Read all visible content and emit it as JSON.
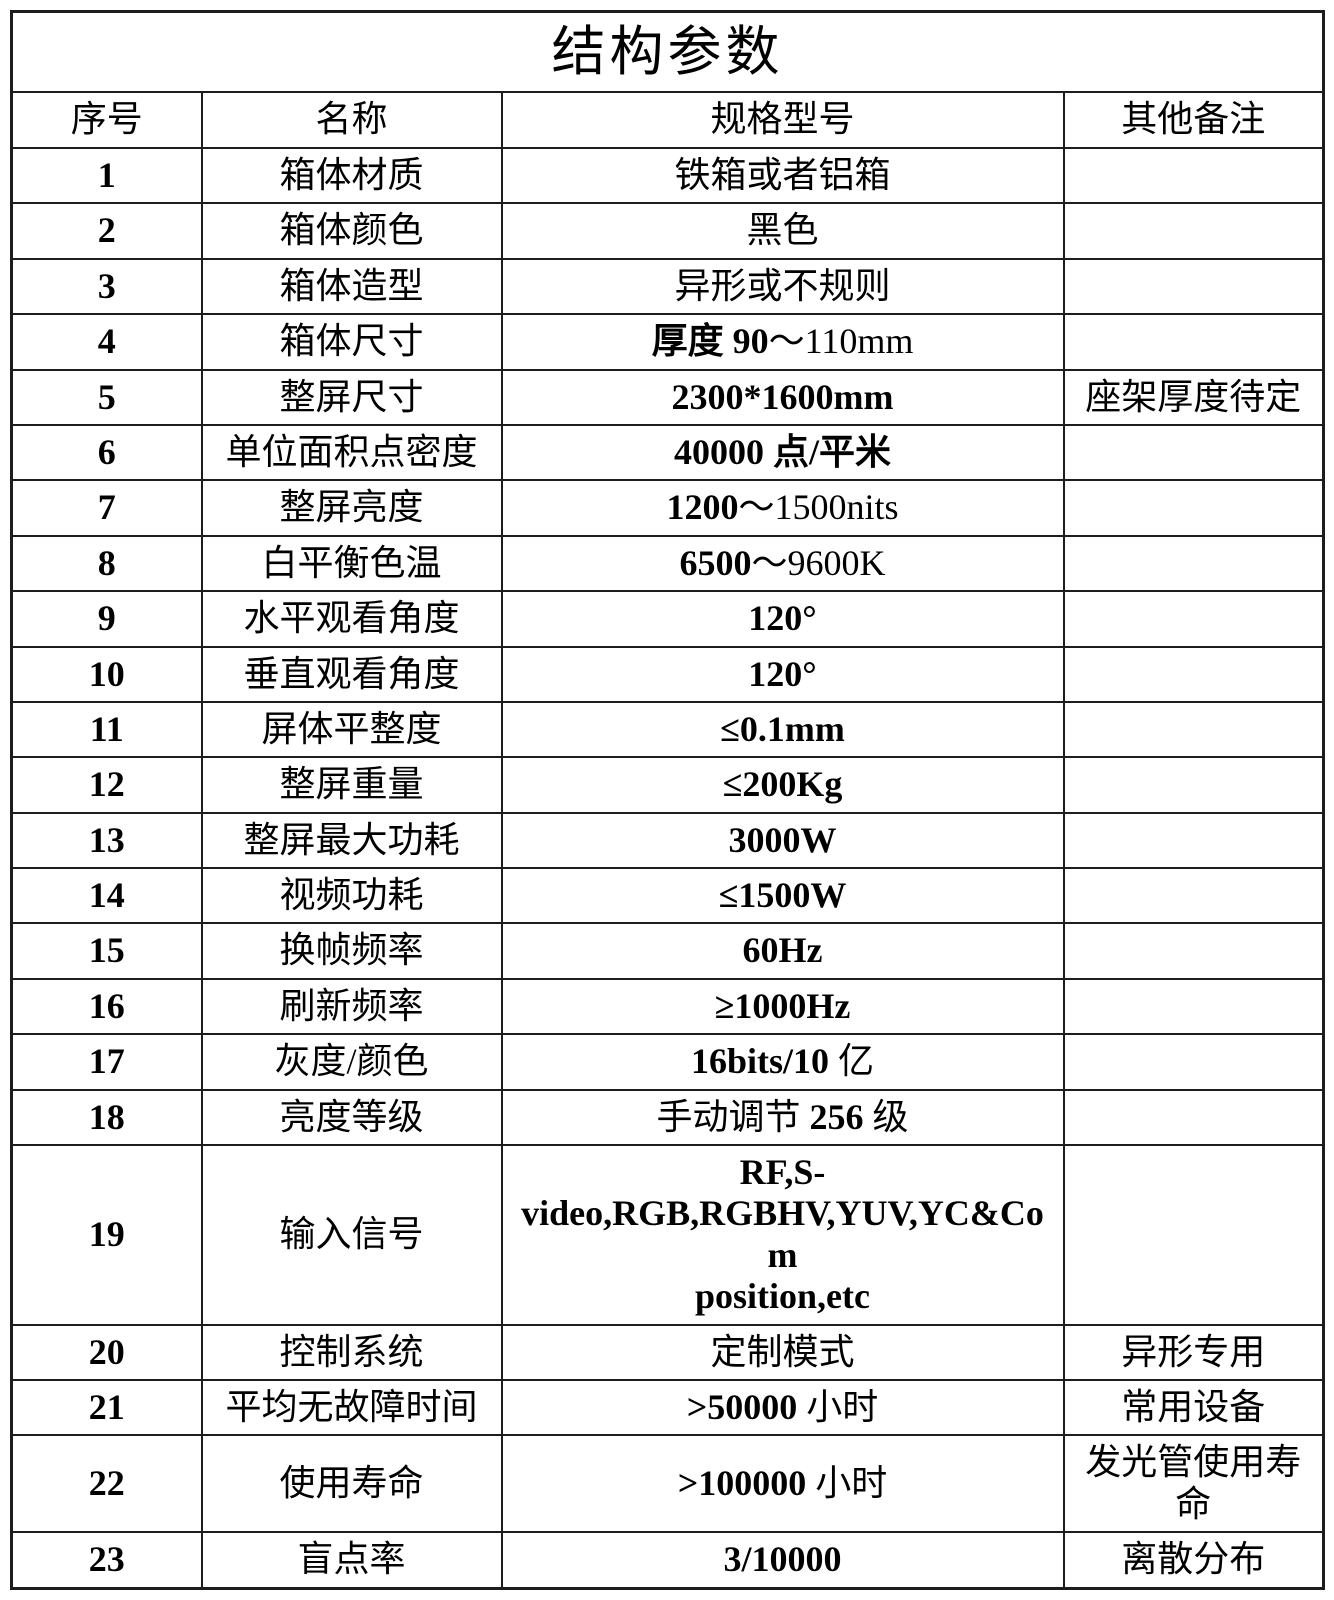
{
  "colors": {
    "background": "#ffffff",
    "text": "#000000",
    "border": "#1d1d1d"
  },
  "table": {
    "title": "结构参数",
    "columns": [
      "序号",
      "名称",
      "规格型号",
      "其他备注"
    ],
    "rows": [
      {
        "no": "1",
        "name": "箱体材质",
        "spec": [
          {
            "t": "铁箱或者铝箱",
            "b": false
          }
        ],
        "remark": ""
      },
      {
        "no": "2",
        "name": "箱体颜色",
        "spec": [
          {
            "t": "黑色",
            "b": false
          }
        ],
        "remark": ""
      },
      {
        "no": "3",
        "name": "箱体造型",
        "spec": [
          {
            "t": "异形或不规则",
            "b": false
          }
        ],
        "remark": ""
      },
      {
        "no": "4",
        "name": "箱体尺寸",
        "spec": [
          {
            "t": "厚度 90",
            "b": true
          },
          {
            "t": "～110mm",
            "b": false
          }
        ],
        "remark": ""
      },
      {
        "no": "5",
        "name": "整屏尺寸",
        "spec": [
          {
            "t": "2300*1600mm",
            "b": true
          }
        ],
        "remark": "座架厚度待定"
      },
      {
        "no": "6",
        "name": "单位面积点密度",
        "spec": [
          {
            "t": "40000 点/平米",
            "b": true
          }
        ],
        "remark": ""
      },
      {
        "no": "7",
        "name": "整屏亮度",
        "spec": [
          {
            "t": "1200",
            "b": true
          },
          {
            "t": "～1500nits",
            "b": false
          }
        ],
        "remark": ""
      },
      {
        "no": "8",
        "name": "白平衡色温",
        "spec": [
          {
            "t": "6500",
            "b": true
          },
          {
            "t": "～9600K",
            "b": false
          }
        ],
        "remark": ""
      },
      {
        "no": "9",
        "name": "水平观看角度",
        "spec": [
          {
            "t": "120°",
            "b": true
          }
        ],
        "remark": ""
      },
      {
        "no": "10",
        "name": "垂直观看角度",
        "spec": [
          {
            "t": "120°",
            "b": true
          }
        ],
        "remark": ""
      },
      {
        "no": "11",
        "name": "屏体平整度",
        "spec": [
          {
            "t": "≤0.1mm",
            "b": true
          }
        ],
        "remark": ""
      },
      {
        "no": "12",
        "name": "整屏重量",
        "spec": [
          {
            "t": "≤200Kg",
            "b": true
          }
        ],
        "remark": ""
      },
      {
        "no": "13",
        "name": "整屏最大功耗",
        "spec": [
          {
            "t": "3000W",
            "b": true
          }
        ],
        "remark": ""
      },
      {
        "no": "14",
        "name": "视频功耗",
        "spec": [
          {
            "t": "≤1500W",
            "b": true
          }
        ],
        "remark": ""
      },
      {
        "no": "15",
        "name": "换帧频率",
        "spec": [
          {
            "t": "60Hz",
            "b": true
          }
        ],
        "remark": ""
      },
      {
        "no": "16",
        "name": "刷新频率",
        "spec": [
          {
            "t": "≥1000Hz",
            "b": true
          }
        ],
        "remark": ""
      },
      {
        "no": "17",
        "name": "灰度/颜色",
        "spec": [
          {
            "t": "16bits/10 ",
            "b": true
          },
          {
            "t": "亿",
            "b": false
          }
        ],
        "remark": ""
      },
      {
        "no": "18",
        "name": "亮度等级",
        "spec": [
          {
            "t": "手动调节 ",
            "b": false
          },
          {
            "t": "256",
            "b": true
          },
          {
            "t": " 级",
            "b": false
          }
        ],
        "remark": ""
      },
      {
        "no": "19",
        "name": "输入信号",
        "spec": [
          {
            "t": "RF,S-",
            "b": true
          },
          {
            "t": "\n"
          },
          {
            "t": "video,RGB,RGBHV,YUV,YC&Com",
            "b": true
          },
          {
            "t": "\n"
          },
          {
            "t": "position,etc",
            "b": true
          }
        ],
        "remark": ""
      },
      {
        "no": "20",
        "name": "控制系统",
        "spec": [
          {
            "t": "定制模式",
            "b": false
          }
        ],
        "remark": "异形专用"
      },
      {
        "no": "21",
        "name": "平均无故障时间",
        "spec": [
          {
            "t": ">50000 ",
            "b": true
          },
          {
            "t": "小时",
            "b": false
          }
        ],
        "remark": "常用设备"
      },
      {
        "no": "22",
        "name": "使用寿命",
        "spec": [
          {
            "t": ">100000 ",
            "b": true
          },
          {
            "t": "小时",
            "b": false
          }
        ],
        "remark": "发光管使用寿命"
      },
      {
        "no": "23",
        "name": "盲点率",
        "spec": [
          {
            "t": "3/10000",
            "b": true
          }
        ],
        "remark": "离散分布"
      }
    ]
  }
}
